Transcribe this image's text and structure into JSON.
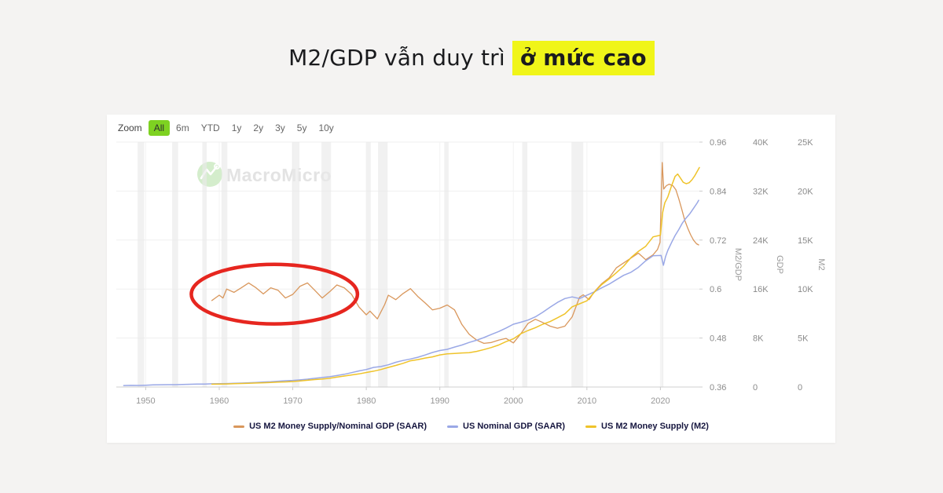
{
  "page": {
    "background": "#f4f3f2",
    "card_background": "#ffffff"
  },
  "header": {
    "title_plain": "M2/GDP vẫn duy trì",
    "title_highlight": "ở mức cao",
    "highlight_color": "#f0f519",
    "text_color": "#1a1b1e"
  },
  "toolbar": {
    "zoom_label": "Zoom",
    "buttons": [
      {
        "label": "All",
        "active": true
      },
      {
        "label": "6m",
        "active": false
      },
      {
        "label": "YTD",
        "active": false
      },
      {
        "label": "1y",
        "active": false
      },
      {
        "label": "2y",
        "active": false
      },
      {
        "label": "3y",
        "active": false
      },
      {
        "label": "5y",
        "active": false
      },
      {
        "label": "10y",
        "active": false
      }
    ],
    "active_color": "#7ed221"
  },
  "watermark": {
    "text": "MacroMicro",
    "logo_color": "#d4edcc",
    "text_color": "#e3e3e3"
  },
  "chart_data": {
    "type": "line",
    "x_axis": {
      "min": 1946,
      "max": 2025.3,
      "ticks": [
        1950,
        1960,
        1970,
        1980,
        1990,
        2000,
        2010,
        2020
      ]
    },
    "right_axes": [
      {
        "id": "ratio",
        "title": "M2/GDP",
        "min": 0.36,
        "max": 0.96,
        "ticks": [
          0.36,
          0.48,
          0.6,
          0.72,
          0.84,
          0.96
        ],
        "labels": [
          "0.36",
          "0.48",
          "0.6",
          "0.72",
          "0.84",
          "0.96"
        ]
      },
      {
        "id": "gdp",
        "title": "GDP",
        "min": 0,
        "max": 40000,
        "ticks": [
          0,
          8000,
          16000,
          24000,
          32000,
          40000
        ],
        "labels": [
          "0",
          "8K",
          "16K",
          "24K",
          "32K",
          "40K"
        ]
      },
      {
        "id": "m2",
        "title": "M2",
        "min": 0,
        "max": 25000,
        "ticks": [
          0,
          5000,
          10000,
          15000,
          20000,
          25000
        ],
        "labels": [
          "0",
          "5K",
          "10K",
          "15K",
          "20K",
          "25K"
        ]
      }
    ],
    "recession_bands": [
      [
        1948.9,
        1949.8
      ],
      [
        1953.6,
        1954.4
      ],
      [
        1957.7,
        1958.3
      ],
      [
        1960.3,
        1961.1
      ],
      [
        1969.9,
        1970.9
      ],
      [
        1973.9,
        1975.2
      ],
      [
        1980.0,
        1980.6
      ],
      [
        1981.6,
        1982.9
      ],
      [
        1990.6,
        1991.2
      ],
      [
        2001.2,
        2001.9
      ],
      [
        2007.9,
        2009.5
      ],
      [
        2020.1,
        2020.4
      ]
    ],
    "series": [
      {
        "name": "US M2 Money Supply/Nominal GDP (SAAR)",
        "color": "#d9975c",
        "axis": "ratio",
        "width": 1.3,
        "points": [
          [
            1959,
            0.572
          ],
          [
            1960,
            0.585
          ],
          [
            1960.5,
            0.578
          ],
          [
            1961,
            0.6
          ],
          [
            1962,
            0.592
          ],
          [
            1963,
            0.603
          ],
          [
            1964,
            0.615
          ],
          [
            1965,
            0.603
          ],
          [
            1966,
            0.588
          ],
          [
            1967,
            0.603
          ],
          [
            1968,
            0.597
          ],
          [
            1969,
            0.578
          ],
          [
            1970,
            0.587
          ],
          [
            1971,
            0.607
          ],
          [
            1972,
            0.615
          ],
          [
            1973,
            0.597
          ],
          [
            1974,
            0.578
          ],
          [
            1975,
            0.593
          ],
          [
            1976,
            0.61
          ],
          [
            1977,
            0.603
          ],
          [
            1978,
            0.587
          ],
          [
            1979,
            0.556
          ],
          [
            1980,
            0.537
          ],
          [
            1980.5,
            0.546
          ],
          [
            1981.5,
            0.527
          ],
          [
            1982.5,
            0.562
          ],
          [
            1983,
            0.585
          ],
          [
            1984,
            0.574
          ],
          [
            1985,
            0.589
          ],
          [
            1986,
            0.601
          ],
          [
            1987,
            0.582
          ],
          [
            1988,
            0.566
          ],
          [
            1989,
            0.549
          ],
          [
            1990,
            0.553
          ],
          [
            1991,
            0.561
          ],
          [
            1992,
            0.549
          ],
          [
            1993,
            0.513
          ],
          [
            1994,
            0.489
          ],
          [
            1995,
            0.475
          ],
          [
            1996,
            0.467
          ],
          [
            1997,
            0.469
          ],
          [
            1998,
            0.475
          ],
          [
            1999,
            0.479
          ],
          [
            2000,
            0.468
          ],
          [
            2001,
            0.49
          ],
          [
            2002,
            0.516
          ],
          [
            2003,
            0.526
          ],
          [
            2004,
            0.518
          ],
          [
            2005,
            0.509
          ],
          [
            2006,
            0.504
          ],
          [
            2007,
            0.509
          ],
          [
            2008,
            0.532
          ],
          [
            2009,
            0.58
          ],
          [
            2009.5,
            0.586
          ],
          [
            2010.3,
            0.574
          ],
          [
            2011,
            0.593
          ],
          [
            2012,
            0.613
          ],
          [
            2013,
            0.627
          ],
          [
            2014,
            0.652
          ],
          [
            2015,
            0.664
          ],
          [
            2016,
            0.676
          ],
          [
            2017,
            0.688
          ],
          [
            2018,
            0.672
          ],
          [
            2019,
            0.684
          ],
          [
            2019.6,
            0.697
          ],
          [
            2019.95,
            0.714
          ],
          [
            2020.25,
            0.91
          ],
          [
            2020.45,
            0.845
          ],
          [
            2020.8,
            0.853
          ],
          [
            2021.2,
            0.857
          ],
          [
            2021.7,
            0.853
          ],
          [
            2022.1,
            0.843
          ],
          [
            2022.5,
            0.821
          ],
          [
            2022.9,
            0.796
          ],
          [
            2023.3,
            0.769
          ],
          [
            2023.7,
            0.75
          ],
          [
            2024.1,
            0.733
          ],
          [
            2024.5,
            0.72
          ],
          [
            2024.9,
            0.711
          ],
          [
            2025.2,
            0.708
          ]
        ]
      },
      {
        "name": "US Nominal GDP (SAAR)",
        "color": "#9aa8e6",
        "axis": "gdp",
        "width": 1.5,
        "points": [
          [
            1947,
            243
          ],
          [
            1948,
            265
          ],
          [
            1949,
            262
          ],
          [
            1950,
            300
          ],
          [
            1951,
            347
          ],
          [
            1952,
            368
          ],
          [
            1953,
            390
          ],
          [
            1954,
            391
          ],
          [
            1955,
            426
          ],
          [
            1956,
            450
          ],
          [
            1957,
            474
          ],
          [
            1958,
            482
          ],
          [
            1959,
            522
          ],
          [
            1960,
            543
          ],
          [
            1961,
            563
          ],
          [
            1962,
            605
          ],
          [
            1963,
            639
          ],
          [
            1964,
            686
          ],
          [
            1965,
            744
          ],
          [
            1966,
            815
          ],
          [
            1967,
            862
          ],
          [
            1968,
            943
          ],
          [
            1969,
            1020
          ],
          [
            1970,
            1073
          ],
          [
            1971,
            1165
          ],
          [
            1972,
            1280
          ],
          [
            1973,
            1425
          ],
          [
            1974,
            1545
          ],
          [
            1975,
            1685
          ],
          [
            1976,
            1873
          ],
          [
            1977,
            2082
          ],
          [
            1978,
            2352
          ],
          [
            1979,
            2627
          ],
          [
            1980,
            2857
          ],
          [
            1981,
            3207
          ],
          [
            1982,
            3344
          ],
          [
            1983,
            3634
          ],
          [
            1984,
            4038
          ],
          [
            1985,
            4339
          ],
          [
            1986,
            4580
          ],
          [
            1987,
            4855
          ],
          [
            1988,
            5236
          ],
          [
            1989,
            5642
          ],
          [
            1990,
            5963
          ],
          [
            1991,
            6158
          ],
          [
            1992,
            6520
          ],
          [
            1993,
            6859
          ],
          [
            1994,
            7287
          ],
          [
            1995,
            7640
          ],
          [
            1996,
            8073
          ],
          [
            1997,
            8578
          ],
          [
            1998,
            9063
          ],
          [
            1999,
            9631
          ],
          [
            2000,
            10251
          ],
          [
            2001,
            10582
          ],
          [
            2002,
            10936
          ],
          [
            2003,
            11458
          ],
          [
            2004,
            12214
          ],
          [
            2005,
            13037
          ],
          [
            2006,
            13815
          ],
          [
            2007,
            14452
          ],
          [
            2008,
            14713
          ],
          [
            2009,
            14449
          ],
          [
            2010,
            14992
          ],
          [
            2011,
            15543
          ],
          [
            2012,
            16197
          ],
          [
            2013,
            16785
          ],
          [
            2014,
            17527
          ],
          [
            2015,
            18238
          ],
          [
            2016,
            18745
          ],
          [
            2017,
            19543
          ],
          [
            2018,
            20612
          ],
          [
            2019,
            21433
          ],
          [
            2020.1,
            21481
          ],
          [
            2020.4,
            19888
          ],
          [
            2020.7,
            21324
          ],
          [
            2021,
            22313
          ],
          [
            2021.5,
            23550
          ],
          [
            2022,
            24740
          ],
          [
            2022.5,
            25724
          ],
          [
            2023,
            26813
          ],
          [
            2023.5,
            27610
          ],
          [
            2024,
            28297
          ],
          [
            2024.5,
            29180
          ],
          [
            2025,
            30060
          ],
          [
            2025.2,
            30500
          ]
        ]
      },
      {
        "name": "US M2 Money Supply (M2)",
        "color": "#efc32a",
        "axis": "m2",
        "width": 1.5,
        "points": [
          [
            1959,
            290
          ],
          [
            1960,
            300
          ],
          [
            1961,
            315
          ],
          [
            1962,
            335
          ],
          [
            1963,
            357
          ],
          [
            1964,
            382
          ],
          [
            1965,
            410
          ],
          [
            1966,
            435
          ],
          [
            1967,
            465
          ],
          [
            1968,
            500
          ],
          [
            1969,
            520
          ],
          [
            1970,
            560
          ],
          [
            1971,
            620
          ],
          [
            1972,
            690
          ],
          [
            1973,
            760
          ],
          [
            1974,
            810
          ],
          [
            1975,
            890
          ],
          [
            1976,
            1010
          ],
          [
            1977,
            1120
          ],
          [
            1978,
            1230
          ],
          [
            1979,
            1340
          ],
          [
            1980,
            1480
          ],
          [
            1981,
            1620
          ],
          [
            1982,
            1790
          ],
          [
            1983,
            2000
          ],
          [
            1984,
            2200
          ],
          [
            1985,
            2420
          ],
          [
            1986,
            2680
          ],
          [
            1987,
            2800
          ],
          [
            1988,
            2960
          ],
          [
            1989,
            3080
          ],
          [
            1990,
            3280
          ],
          [
            1991,
            3380
          ],
          [
            1992,
            3430
          ],
          [
            1993,
            3480
          ],
          [
            1994,
            3500
          ],
          [
            1995,
            3640
          ],
          [
            1996,
            3820
          ],
          [
            1997,
            4030
          ],
          [
            1998,
            4290
          ],
          [
            1999,
            4630
          ],
          [
            2000,
            4920
          ],
          [
            2001,
            5430
          ],
          [
            2002,
            5770
          ],
          [
            2003,
            6060
          ],
          [
            2004,
            6410
          ],
          [
            2005,
            6680
          ],
          [
            2006,
            7070
          ],
          [
            2007,
            7470
          ],
          [
            2008,
            8190
          ],
          [
            2009,
            8490
          ],
          [
            2010,
            8800
          ],
          [
            2011,
            9660
          ],
          [
            2012,
            10450
          ],
          [
            2013,
            11020
          ],
          [
            2014,
            11670
          ],
          [
            2015,
            12340
          ],
          [
            2016,
            13210
          ],
          [
            2017,
            13850
          ],
          [
            2018,
            14370
          ],
          [
            2019,
            15330
          ],
          [
            2020,
            15500
          ],
          [
            2020.3,
            17800
          ],
          [
            2020.6,
            18800
          ],
          [
            2021,
            19400
          ],
          [
            2021.5,
            20500
          ],
          [
            2022,
            21500
          ],
          [
            2022.35,
            21740
          ],
          [
            2022.7,
            21350
          ],
          [
            2023.1,
            20900
          ],
          [
            2023.5,
            20750
          ],
          [
            2023.9,
            20850
          ],
          [
            2024.3,
            21150
          ],
          [
            2024.7,
            21600
          ],
          [
            2025,
            22000
          ],
          [
            2025.3,
            22400
          ]
        ]
      }
    ],
    "annotation": {
      "shape": "ellipse",
      "center_year": 1967.5,
      "center_value": 0.5875,
      "rx_years": 11.3,
      "ry_value": 0.073,
      "color": "#e6261f",
      "stroke_width": 4.5
    },
    "style": {
      "band_color": "#e9e9e9",
      "hgrid_color": "#efefef",
      "vgrid_color": "#f3f3f3",
      "axis_line_color": "#cfcfcf",
      "tick_color": "#cccccc",
      "x_label_color": "#969696",
      "right_label_color": "#8a8a8a",
      "axis_title_color": "#9a9a9a"
    }
  }
}
